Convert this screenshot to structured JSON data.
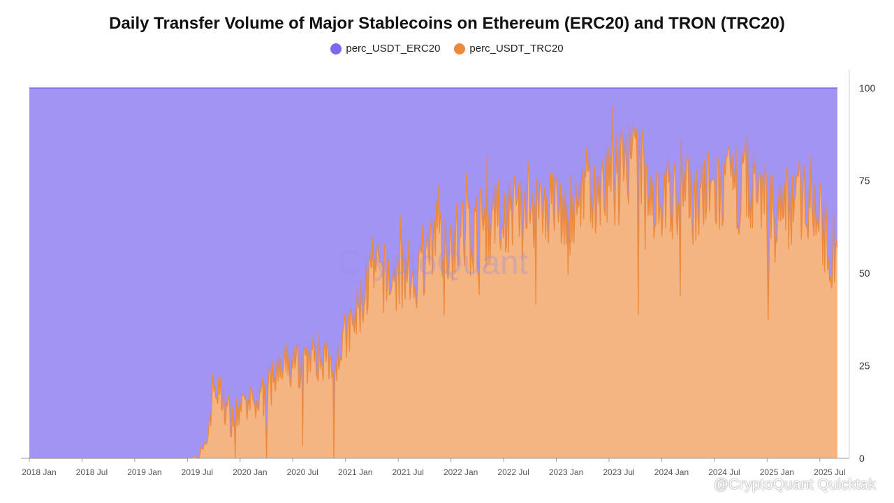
{
  "chart_data": {
    "type": "area",
    "title": "Daily Transfer Volume of Major Stablecoins on Ethereum (ERC20) and TRON (TRC20)",
    "stacked_percent": true,
    "series": [
      {
        "name": "perc_USDT_ERC20",
        "color": "#a294f2",
        "line_color": "#7b68ee"
      },
      {
        "name": "perc_USDT_TRC20",
        "color": "#f4b583",
        "line_color": "#ec8a3c"
      }
    ],
    "x": [
      "2018-01",
      "2019-07",
      "2019-09",
      "2019-10",
      "2019-12",
      "2020-03",
      "2020-06",
      "2020-09",
      "2020-12",
      "2021-02",
      "2021-04",
      "2021-06",
      "2021-09",
      "2021-12",
      "2022-03",
      "2022-06",
      "2022-09",
      "2022-12",
      "2023-03",
      "2023-06",
      "2023-08",
      "2023-10",
      "2023-12",
      "2024-03",
      "2024-06",
      "2024-09",
      "2024-11",
      "2025-02",
      "2025-04",
      "2025-06",
      "2025-08",
      "2025-09"
    ],
    "trc20_values": [
      0,
      0,
      1,
      20,
      11,
      15,
      24,
      27,
      28,
      36,
      50,
      48,
      50,
      58,
      60,
      64,
      69,
      69,
      65,
      72,
      75,
      79,
      71,
      69,
      71,
      72,
      75,
      64,
      70,
      72,
      56,
      57
    ],
    "erc20_values": [
      100,
      100,
      99,
      80,
      89,
      85,
      76,
      73,
      72,
      64,
      50,
      52,
      50,
      42,
      40,
      36,
      31,
      31,
      35,
      28,
      25,
      21,
      29,
      31,
      29,
      28,
      25,
      36,
      30,
      28,
      44,
      43
    ],
    "x_tick_labels": [
      "2018 Jan",
      "2018 Jul",
      "2019 Jan",
      "2019 Jul",
      "2020 Jan",
      "2020 Jul",
      "2021 Jan",
      "2021 Jul",
      "2022 Jan",
      "2022 Jul",
      "2023 Jan",
      "2023 Jul",
      "2024 Jan",
      "2024 Jul",
      "2025 Jan",
      "2025 Jul"
    ],
    "y_tick_labels": [
      "0",
      "25",
      "50",
      "75",
      "100"
    ],
    "ylim": [
      0,
      100
    ],
    "xlim": [
      "2018-01",
      "2025-09"
    ],
    "grid": true,
    "legend_position": "top-center",
    "y_axis_side": "right",
    "xlabel": "",
    "ylabel": ""
  },
  "watermark": "CryptoQuant",
  "credit": "@CryptoQuant Quicktak"
}
